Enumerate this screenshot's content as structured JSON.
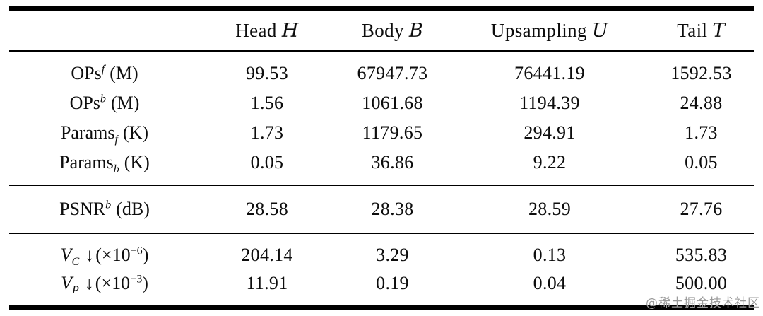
{
  "table": {
    "columns": [
      {
        "label": "Head",
        "symbol": "H"
      },
      {
        "label": "Body",
        "symbol": "B"
      },
      {
        "label": "Upsampling",
        "symbol": "U"
      },
      {
        "label": "Tail",
        "symbol": "T"
      }
    ],
    "ops_params": {
      "rows": [
        {
          "base": "OPs",
          "sup": "f",
          "unit": "(M)",
          "values": [
            "99.53",
            "67947.73",
            "76441.19",
            "1592.53"
          ]
        },
        {
          "base": "OPs",
          "sup": "b",
          "unit": "(M)",
          "values": [
            "1.56",
            "1061.68",
            "1194.39",
            "24.88"
          ]
        },
        {
          "base": "Params",
          "sub": "f",
          "unit": "(K)",
          "values": [
            "1.73",
            "1179.65",
            "294.91",
            "1.73"
          ]
        },
        {
          "base": "Params",
          "sub": "b",
          "unit": "(K)",
          "values": [
            "0.05",
            "36.86",
            "9.22",
            "0.05"
          ]
        }
      ]
    },
    "psnr": {
      "rows": [
        {
          "base": "PSNR",
          "sup": "b",
          "unit": "(dB)",
          "values": [
            "28.58",
            "28.38",
            "28.59",
            "27.76"
          ]
        }
      ]
    },
    "variance": {
      "rows": [
        {
          "var": "V",
          "sub": "C",
          "arrow": "↓",
          "open": "(×10",
          "exp": "−6",
          "close": ")",
          "values": [
            "204.14",
            "3.29",
            "0.13",
            "535.83"
          ]
        },
        {
          "var": "V",
          "sub": "P",
          "arrow": "↓",
          "open": "(×10",
          "exp": "−3",
          "close": ")",
          "values": [
            "11.91",
            "0.19",
            "0.04",
            "500.00"
          ]
        }
      ]
    }
  },
  "watermark": "@稀土掘金技术社区"
}
